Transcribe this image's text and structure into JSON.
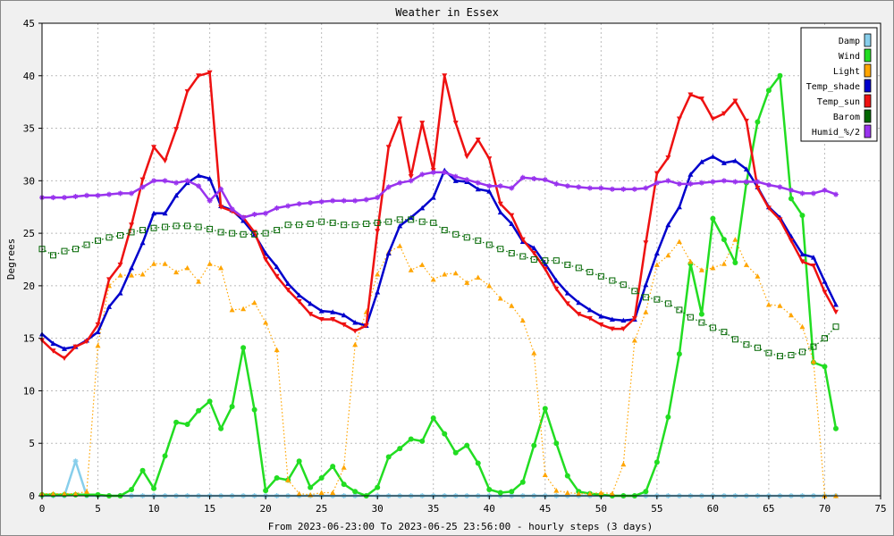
{
  "chart_data": {
    "type": "line",
    "title": "Weather in Essex",
    "xlabel": "From 2023-06-23:00 To 2023-06-25 23:56:00 - hourly steps (3 days)",
    "ylabel": "Degrees",
    "xlim": [
      0,
      75
    ],
    "ylim": [
      0,
      45
    ],
    "xticks": [
      0,
      5,
      10,
      15,
      20,
      25,
      30,
      35,
      40,
      45,
      50,
      55,
      60,
      65,
      70,
      75
    ],
    "yticks": [
      0,
      5,
      10,
      15,
      20,
      25,
      30,
      35,
      40,
      45
    ],
    "grid": true,
    "legend_position": "top-right",
    "series": [
      {
        "name": "Damp",
        "color": "#87ceeb",
        "style": "solid",
        "marker": "star",
        "values": [
          0,
          0,
          0,
          3.3,
          0,
          0,
          0,
          0,
          0,
          0,
          0,
          0,
          0,
          0,
          0,
          0,
          0,
          0,
          0,
          0,
          0,
          0,
          0,
          0,
          0,
          0,
          0,
          0,
          0,
          0,
          0,
          0,
          0,
          0,
          0,
          0,
          0,
          0,
          0,
          0,
          0,
          0,
          0,
          0,
          0,
          0,
          0,
          0,
          0,
          0,
          0,
          0,
          0,
          0,
          0,
          0,
          0,
          0,
          0,
          0,
          0,
          0,
          0,
          0,
          0,
          0,
          0,
          0,
          0,
          0,
          0,
          0
        ]
      },
      {
        "name": "Wind",
        "color": "#22dd22",
        "style": "solid",
        "marker": "circle",
        "values": [
          0.1,
          0.1,
          0.1,
          0.1,
          0.1,
          0.1,
          0,
          0,
          0.6,
          2.4,
          0.7,
          3.8,
          7,
          6.8,
          8.1,
          9,
          6.4,
          8.5,
          14.1,
          8.2,
          0.5,
          1.7,
          1.5,
          3.3,
          0.8,
          1.7,
          2.8,
          1.1,
          0.4,
          0,
          0.8,
          3.7,
          4.5,
          5.4,
          5.2,
          7.4,
          5.9,
          4.1,
          4.8,
          3.1,
          0.6,
          0.3,
          0.4,
          1.3,
          4.8,
          8.3,
          5,
          1.9,
          0.4,
          0.2,
          0.1,
          0,
          0,
          0,
          0.4,
          3.2,
          7.5,
          13.5,
          22.1,
          17.3,
          26.4,
          24.4,
          22.2,
          29.8,
          35.6,
          38.6,
          40,
          28.3,
          26.7,
          12.7,
          12.3,
          6.4
        ]
      },
      {
        "name": "Light",
        "color": "#ffa500",
        "style": "dotted",
        "marker": "triangle-up",
        "values": [
          0.2,
          0.2,
          0.2,
          0.2,
          0.4,
          14.3,
          20,
          21,
          21,
          21.1,
          22.1,
          22.1,
          21.3,
          21.7,
          20.4,
          22.1,
          21.7,
          17.7,
          17.8,
          18.4,
          16.5,
          13.9,
          1.5,
          0.2,
          0.1,
          0.3,
          0.3,
          2.7,
          14.4,
          17.5,
          21.1,
          23.2,
          23.8,
          21.5,
          22,
          20.6,
          21.1,
          21.2,
          20.3,
          20.8,
          20,
          18.8,
          18.1,
          16.7,
          13.6,
          2,
          0.5,
          0.3,
          0.2,
          0.2,
          0.3,
          0.2,
          3,
          14.8,
          17.5,
          22,
          22.9,
          24.2,
          22.3,
          21.5,
          21.7,
          22.1,
          24.4,
          22,
          20.9,
          18.2,
          18.1,
          17.2,
          16.1,
          12.8,
          0,
          0
        ]
      },
      {
        "name": "Temp_shade",
        "color": "#0000cc",
        "style": "solid",
        "marker": "triangle-up",
        "values": [
          15.4,
          14.5,
          14,
          14.2,
          14.8,
          15.6,
          18,
          19.3,
          21.7,
          24.1,
          26.9,
          26.9,
          28.6,
          29.8,
          30.5,
          30.2,
          27.6,
          27.2,
          26.2,
          24.9,
          23.1,
          21.8,
          20.2,
          19.1,
          18.3,
          17.6,
          17.5,
          17.2,
          16.5,
          16.2,
          19.4,
          23.1,
          25.7,
          26.5,
          27.4,
          28.4,
          31,
          30,
          29.9,
          29.2,
          29,
          27,
          25.9,
          24.2,
          23.6,
          22.1,
          20.5,
          19.3,
          18.4,
          17.7,
          17.1,
          16.8,
          16.7,
          16.8,
          20.1,
          23.1,
          25.8,
          27.5,
          30.6,
          31.8,
          32.3,
          31.7,
          31.9,
          31.1,
          29.4,
          27.5,
          26.5,
          24.7,
          23,
          22.7,
          20.4,
          18.2
        ]
      },
      {
        "name": "Temp_sun",
        "color": "#ee1111",
        "style": "solid",
        "marker": "triangle-down",
        "values": [
          14.8,
          13.8,
          13.1,
          14.2,
          14.7,
          16.3,
          20.6,
          22,
          25.8,
          30.1,
          33.2,
          31.9,
          34.9,
          38.5,
          40,
          40.3,
          27.5,
          27.1,
          26.5,
          25.1,
          22.5,
          20.9,
          19.6,
          18.5,
          17.3,
          16.8,
          16.8,
          16.3,
          15.7,
          16.2,
          25.2,
          33.2,
          35.9,
          30.4,
          35.5,
          31,
          40,
          35.5,
          32.3,
          33.9,
          32.1,
          27.8,
          26.7,
          24.4,
          23.1,
          21.6,
          19.7,
          18.3,
          17.3,
          16.9,
          16.3,
          15.9,
          15.9,
          16.9,
          24.1,
          30.7,
          32.2,
          35.9,
          38.2,
          37.8,
          35.9,
          36.4,
          37.6,
          35.7,
          29.3,
          27.4,
          26.3,
          24.3,
          22.3,
          21.9,
          19.4,
          17.5
        ]
      },
      {
        "name": "Barom",
        "color": "#006600",
        "style": "dotted",
        "marker": "square",
        "values": [
          23.5,
          22.9,
          23.3,
          23.5,
          23.9,
          24.3,
          24.6,
          24.8,
          25.1,
          25.3,
          25.5,
          25.6,
          25.7,
          25.7,
          25.6,
          25.4,
          25.1,
          25,
          24.9,
          24.9,
          25,
          25.3,
          25.8,
          25.8,
          25.9,
          26.1,
          26,
          25.8,
          25.8,
          25.9,
          26,
          26.1,
          26.3,
          26.3,
          26.1,
          26,
          25.3,
          24.9,
          24.6,
          24.3,
          23.9,
          23.5,
          23.1,
          22.8,
          22.5,
          22.4,
          22.4,
          22,
          21.7,
          21.3,
          20.9,
          20.5,
          20.1,
          19.5,
          18.9,
          18.7,
          18.3,
          17.7,
          17,
          16.5,
          16,
          15.6,
          14.9,
          14.4,
          14.1,
          13.6,
          13.3,
          13.4,
          13.7,
          14.2,
          15,
          16.1
        ]
      },
      {
        "name": "Humid_%/2",
        "color": "#9933ee",
        "style": "solid",
        "marker": "star",
        "values": [
          28.4,
          28.4,
          28.4,
          28.5,
          28.6,
          28.6,
          28.7,
          28.8,
          28.8,
          29.4,
          30,
          30,
          29.8,
          30,
          29.5,
          28.1,
          29.2,
          27.3,
          26.5,
          26.8,
          26.9,
          27.4,
          27.6,
          27.8,
          27.9,
          28,
          28.1,
          28.1,
          28.1,
          28.2,
          28.4,
          29.4,
          29.8,
          30,
          30.6,
          30.8,
          30.8,
          30.4,
          30.1,
          29.8,
          29.5,
          29.5,
          29.3,
          30.3,
          30.2,
          30.1,
          29.7,
          29.5,
          29.4,
          29.3,
          29.3,
          29.2,
          29.2,
          29.2,
          29.3,
          29.8,
          30,
          29.7,
          29.7,
          29.8,
          29.9,
          30,
          29.9,
          29.9,
          29.9,
          29.6,
          29.4,
          29.1,
          28.8,
          28.8,
          29.1,
          28.7
        ]
      }
    ]
  }
}
